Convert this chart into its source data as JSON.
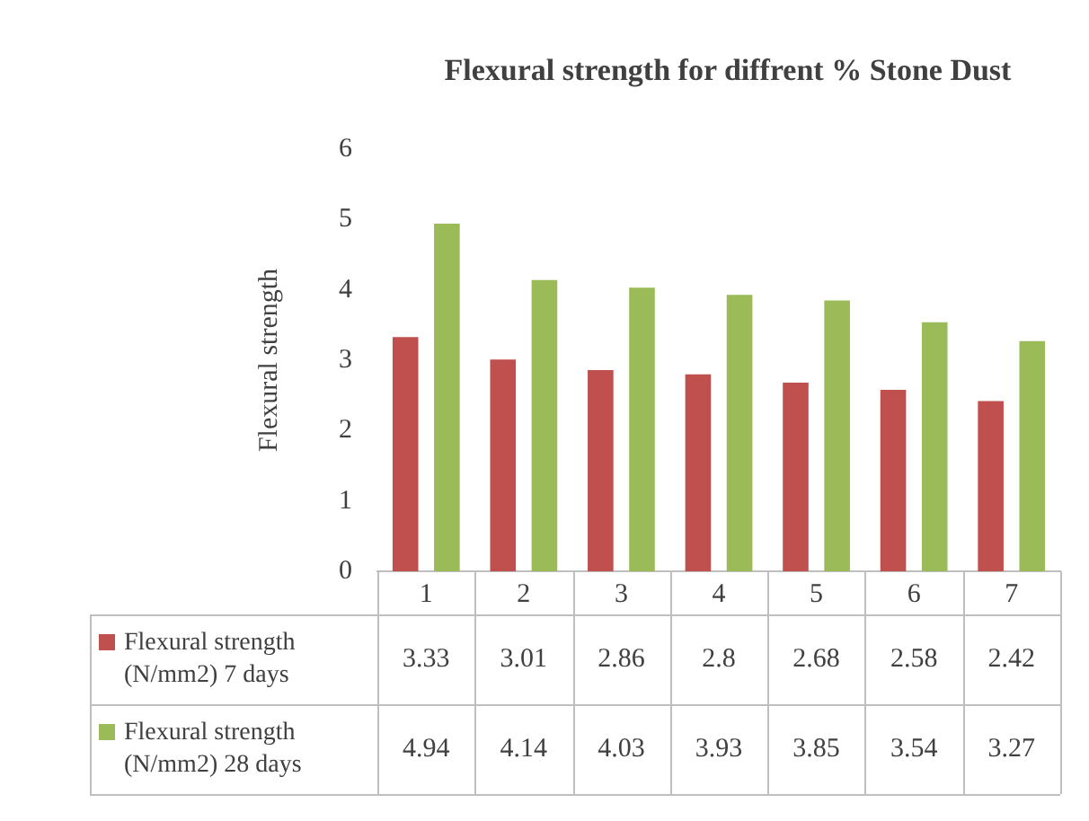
{
  "chart_data": {
    "type": "bar",
    "title": "Flexural strength for diffrent % Stone Dust",
    "ylabel": "Flexural strength",
    "categories": [
      "1",
      "2",
      "3",
      "4",
      "5",
      "6",
      "7"
    ],
    "series": [
      {
        "name": "Flexural strength (N/mm2) 7 days",
        "color": "#c0504d",
        "values": [
          3.33,
          3.01,
          2.86,
          2.8,
          2.68,
          2.58,
          2.42
        ]
      },
      {
        "name": "Flexural strength (N/mm2) 28 days",
        "color": "#9bbb59",
        "values": [
          4.94,
          4.14,
          4.03,
          3.93,
          3.85,
          3.54,
          3.27
        ]
      }
    ],
    "ylim": [
      0,
      6
    ],
    "yticks": [
      0,
      1,
      2,
      3,
      4,
      5,
      6
    ],
    "grid": false,
    "legend": "bottom",
    "data_labels": true
  }
}
